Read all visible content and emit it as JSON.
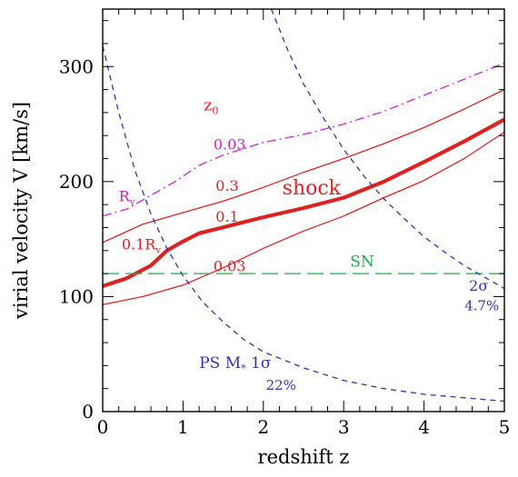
{
  "chart_data": {
    "type": "line",
    "title": "",
    "xlabel": "redshift  z",
    "ylabel": "virial velocity V [km/s]",
    "xlim": [
      0,
      5
    ],
    "ylim": [
      0,
      350
    ],
    "x_ticks": [
      "0",
      "1",
      "2",
      "3",
      "4",
      "5"
    ],
    "y_ticks": [
      "0",
      "100",
      "200",
      "300"
    ],
    "x_tick_values": [
      0,
      1,
      2,
      3,
      4,
      5
    ],
    "y_tick_values": [
      0,
      100,
      200,
      300
    ],
    "series": [
      {
        "id": "rv-upper",
        "color": "#cc22cc",
        "style": "dashdot",
        "weight": "thin",
        "points": [
          [
            0,
            170
          ],
          [
            0.3,
            176
          ],
          [
            0.6,
            188
          ],
          [
            0.9,
            200
          ],
          [
            1.2,
            214
          ],
          [
            1.5,
            223
          ],
          [
            2.0,
            234
          ],
          [
            2.5,
            241
          ],
          [
            3.0,
            250
          ],
          [
            3.5,
            261
          ],
          [
            4.0,
            275
          ],
          [
            4.5,
            289
          ],
          [
            5.0,
            303
          ]
        ]
      },
      {
        "id": "z0-0.3",
        "color": "#dd2222",
        "style": "solid",
        "weight": "thin",
        "points": [
          [
            0,
            147
          ],
          [
            0.5,
            163
          ],
          [
            1.0,
            173
          ],
          [
            1.5,
            183
          ],
          [
            2.0,
            195
          ],
          [
            2.5,
            208
          ],
          [
            3.0,
            220
          ],
          [
            3.5,
            233
          ],
          [
            4.0,
            247
          ],
          [
            4.5,
            263
          ],
          [
            5.0,
            280
          ]
        ]
      },
      {
        "id": "shock",
        "color": "#dd2222",
        "style": "solid",
        "weight": "thick",
        "points": [
          [
            0,
            109
          ],
          [
            0.3,
            116
          ],
          [
            0.6,
            127
          ],
          [
            0.8,
            140
          ],
          [
            1.0,
            148
          ],
          [
            1.2,
            155
          ],
          [
            1.6,
            162
          ],
          [
            2.0,
            169
          ],
          [
            2.5,
            177
          ],
          [
            3.0,
            186
          ],
          [
            3.5,
            200
          ],
          [
            4.0,
            217
          ],
          [
            4.5,
            235
          ],
          [
            5.0,
            254
          ]
        ]
      },
      {
        "id": "z0-0.03-lower",
        "color": "#dd2222",
        "style": "solid",
        "weight": "thin",
        "points": [
          [
            0,
            93
          ],
          [
            0.5,
            100
          ],
          [
            1.0,
            110
          ],
          [
            1.5,
            125
          ],
          [
            2.0,
            142
          ],
          [
            2.5,
            157
          ],
          [
            3.0,
            170
          ],
          [
            3.5,
            186
          ],
          [
            4.0,
            201
          ],
          [
            4.5,
            220
          ],
          [
            5.0,
            243
          ]
        ]
      },
      {
        "id": "sn",
        "color": "#22aa44",
        "style": "longdash",
        "weight": "thin",
        "points": [
          [
            0,
            120
          ],
          [
            5,
            120
          ]
        ]
      },
      {
        "id": "ps-1sigma",
        "color": "#3333aa",
        "style": "dash",
        "weight": "thin",
        "points": [
          [
            0,
            318
          ],
          [
            0.2,
            260
          ],
          [
            0.4,
            210
          ],
          [
            0.6,
            172
          ],
          [
            0.8,
            142
          ],
          [
            1.0,
            118
          ],
          [
            1.25,
            95
          ],
          [
            1.5,
            78
          ],
          [
            1.75,
            63
          ],
          [
            2.0,
            52
          ],
          [
            2.5,
            38
          ],
          [
            3.0,
            27
          ],
          [
            3.5,
            20
          ],
          [
            4.0,
            15
          ],
          [
            4.5,
            12
          ],
          [
            5.0,
            9
          ]
        ]
      },
      {
        "id": "ps-2sigma",
        "color": "#3333aa",
        "style": "dash",
        "weight": "thin",
        "points": [
          [
            2.1,
            350
          ],
          [
            2.3,
            315
          ],
          [
            2.5,
            285
          ],
          [
            2.75,
            255
          ],
          [
            3.0,
            228
          ],
          [
            3.25,
            205
          ],
          [
            3.5,
            185
          ],
          [
            3.75,
            168
          ],
          [
            4.0,
            152
          ],
          [
            4.25,
            139
          ],
          [
            4.5,
            127
          ],
          [
            4.75,
            117
          ],
          [
            5.0,
            107
          ]
        ]
      }
    ],
    "annotations": [
      {
        "id": "z0",
        "text": "z",
        "sub": "0",
        "x": 1.35,
        "y": 262,
        "color": "#dd2222",
        "size": 17
      },
      {
        "id": "lab-003-top",
        "text": "0.03",
        "x": 1.58,
        "y": 228,
        "color": "#cc22cc",
        "size": 16
      },
      {
        "id": "lab-rv",
        "text": "R",
        "sub": "v",
        "x": 0.3,
        "y": 183,
        "color": "#cc22cc",
        "size": 16
      },
      {
        "id": "lab-03",
        "text": "0.3",
        "x": 1.55,
        "y": 192,
        "color": "#dd2222",
        "size": 16
      },
      {
        "id": "lab-shock",
        "text": "shock",
        "x": 2.6,
        "y": 189,
        "color": "#dd2222",
        "size": 22
      },
      {
        "id": "lab-01",
        "text": "0.1",
        "x": 1.55,
        "y": 165,
        "color": "#dd2222",
        "size": 16
      },
      {
        "id": "lab-01rv",
        "text": "0.1R",
        "sub": "v",
        "x": 0.48,
        "y": 141,
        "color": "#dd2222",
        "size": 16
      },
      {
        "id": "lab-003-low",
        "text": "0.03",
        "x": 1.58,
        "y": 122,
        "color": "#dd2222",
        "size": 16
      },
      {
        "id": "lab-sn",
        "text": "SN",
        "x": 3.23,
        "y": 126,
        "color": "#22aa44",
        "size": 17
      },
      {
        "id": "lab-2sigma",
        "text": "2σ",
        "x": 4.68,
        "y": 105,
        "color": "#3333aa",
        "size": 16
      },
      {
        "id": "lab-47",
        "text": "4.7%",
        "x": 4.72,
        "y": 88,
        "color": "#3333aa",
        "size": 15
      },
      {
        "id": "lab-ps",
        "text": "PS  M",
        "sub": "*",
        "tail": "  1σ",
        "x": 1.65,
        "y": 38,
        "color": "#3333aa",
        "size": 17
      },
      {
        "id": "lab-22",
        "text": "22%",
        "x": 2.22,
        "y": 19,
        "color": "#3333aa",
        "size": 15
      }
    ]
  }
}
